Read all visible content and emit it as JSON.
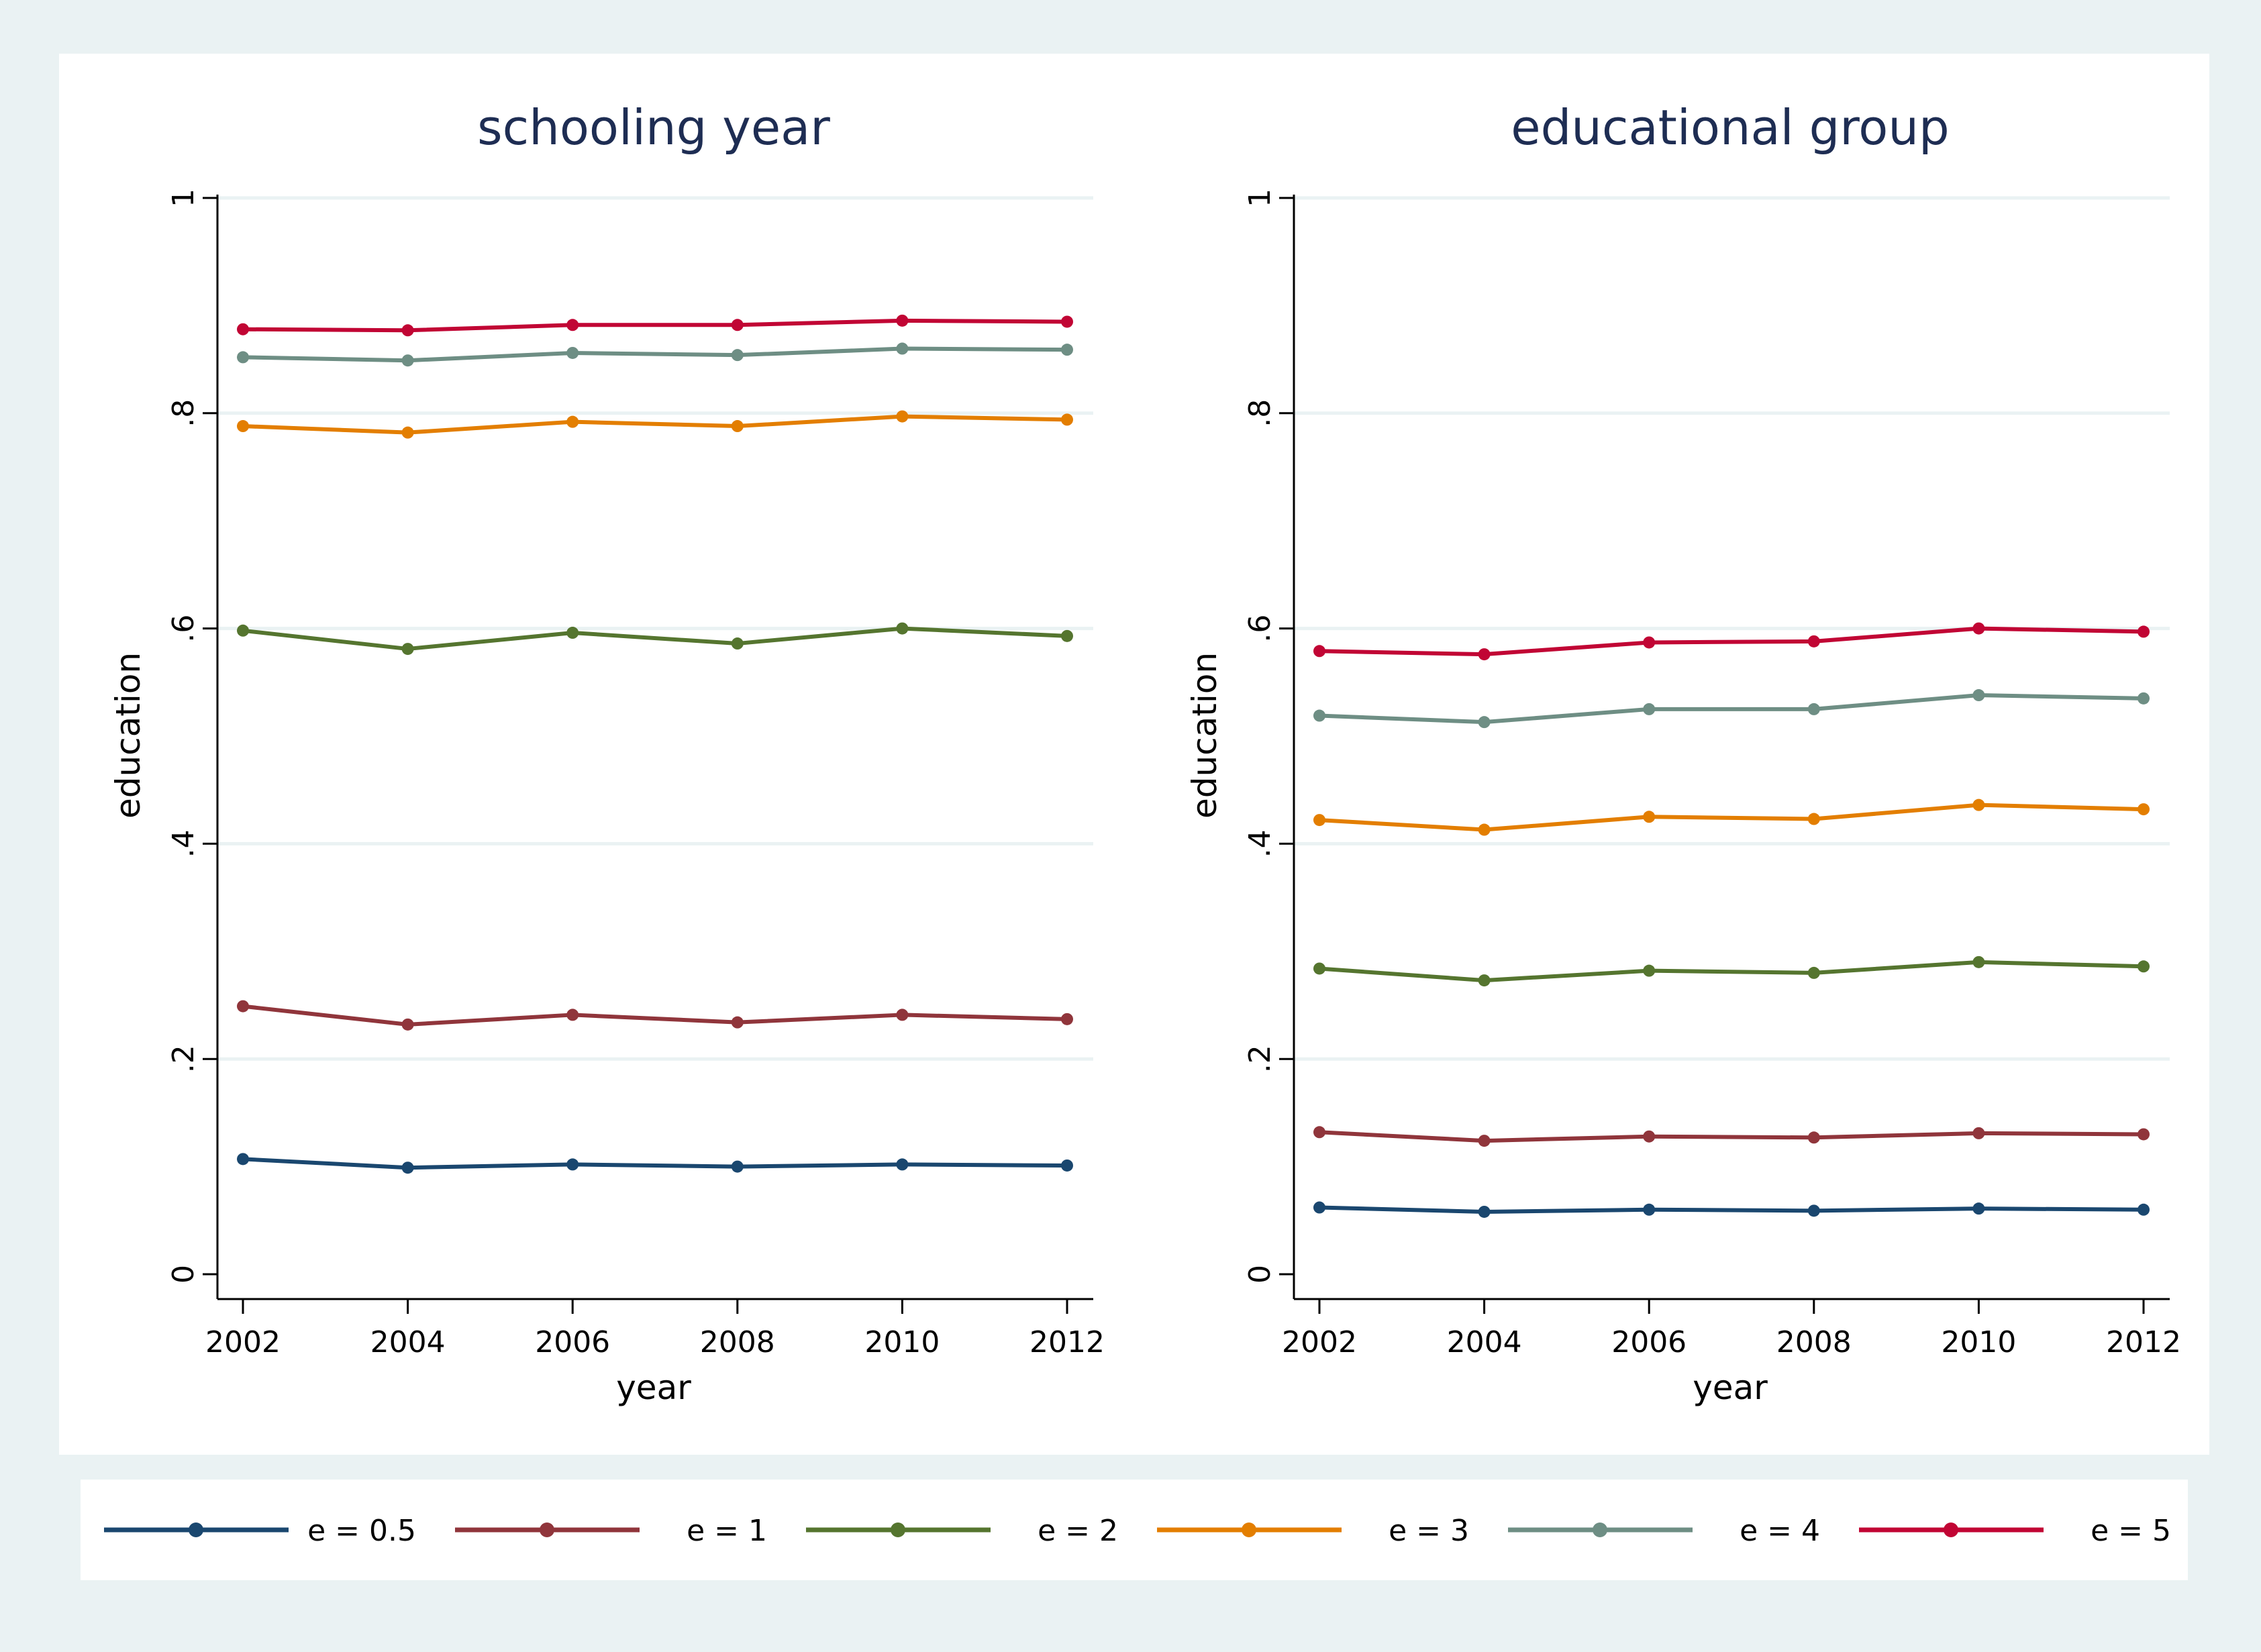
{
  "chart_data": [
    {
      "type": "line",
      "title": "schooling year",
      "xlabel": "year",
      "ylabel": "education",
      "x": [
        2002,
        2004,
        2006,
        2008,
        2010,
        2012
      ],
      "xticks": [
        "2002",
        "2004",
        "2006",
        "2008",
        "2010",
        "2012"
      ],
      "ylim": [
        0,
        1
      ],
      "yticks": [
        "0",
        ".2",
        ".4",
        ".6",
        ".8",
        "1"
      ],
      "grid": true,
      "series": [
        {
          "name": "e = 0.5",
          "color": "#1a476f",
          "values": [
            0.107,
            0.099,
            0.102,
            0.1,
            0.102,
            0.101
          ]
        },
        {
          "name": "e = 1",
          "color": "#90353b",
          "values": [
            0.249,
            0.232,
            0.241,
            0.234,
            0.241,
            0.237
          ]
        },
        {
          "name": "e = 2",
          "color": "#55752f",
          "values": [
            0.598,
            0.581,
            0.596,
            0.586,
            0.6,
            0.593
          ]
        },
        {
          "name": "e = 3",
          "color": "#e37e00",
          "values": [
            0.788,
            0.782,
            0.792,
            0.788,
            0.797,
            0.794
          ]
        },
        {
          "name": "e = 4",
          "color": "#6e8e84",
          "values": [
            0.852,
            0.849,
            0.856,
            0.854,
            0.86,
            0.859
          ]
        },
        {
          "name": "e = 5",
          "color": "#c10534",
          "values": [
            0.878,
            0.877,
            0.882,
            0.882,
            0.886,
            0.885
          ]
        }
      ]
    },
    {
      "type": "line",
      "title": "educational group",
      "xlabel": "year",
      "ylabel": "education",
      "x": [
        2002,
        2004,
        2006,
        2008,
        2010,
        2012
      ],
      "xticks": [
        "2002",
        "2004",
        "2006",
        "2008",
        "2010",
        "2012"
      ],
      "ylim": [
        0,
        1
      ],
      "yticks": [
        "0",
        ".2",
        ".4",
        ".6",
        ".8",
        "1"
      ],
      "grid": true,
      "series": [
        {
          "name": "e = 0.5",
          "color": "#1a476f",
          "values": [
            0.062,
            0.058,
            0.06,
            0.059,
            0.061,
            0.06
          ]
        },
        {
          "name": "e = 1",
          "color": "#90353b",
          "values": [
            0.132,
            0.124,
            0.128,
            0.127,
            0.131,
            0.13
          ]
        },
        {
          "name": "e = 2",
          "color": "#55752f",
          "values": [
            0.284,
            0.273,
            0.282,
            0.28,
            0.29,
            0.286
          ]
        },
        {
          "name": "e = 3",
          "color": "#e37e00",
          "values": [
            0.422,
            0.413,
            0.425,
            0.423,
            0.436,
            0.432
          ]
        },
        {
          "name": "e = 4",
          "color": "#6e8e84",
          "values": [
            0.519,
            0.513,
            0.525,
            0.525,
            0.538,
            0.535
          ]
        },
        {
          "name": "e = 5",
          "color": "#c10534",
          "values": [
            0.579,
            0.576,
            0.587,
            0.588,
            0.6,
            0.597
          ]
        }
      ]
    }
  ],
  "legend": {
    "placement": "bottom",
    "items": [
      {
        "label": "e = 0.5",
        "color": "#1a476f"
      },
      {
        "label": "e = 1",
        "color": "#90353b"
      },
      {
        "label": "e = 2",
        "color": "#55752f"
      },
      {
        "label": "e = 3",
        "color": "#e37e00"
      },
      {
        "label": "e = 4",
        "color": "#6e8e84"
      },
      {
        "label": "e = 5",
        "color": "#c10534"
      }
    ]
  },
  "colors": {
    "outer_background": "#eaf2f3",
    "plot_background": "#ffffff",
    "gridline": "#eaf2f3",
    "axis": "#000000",
    "title_text": "#1e2d53"
  }
}
